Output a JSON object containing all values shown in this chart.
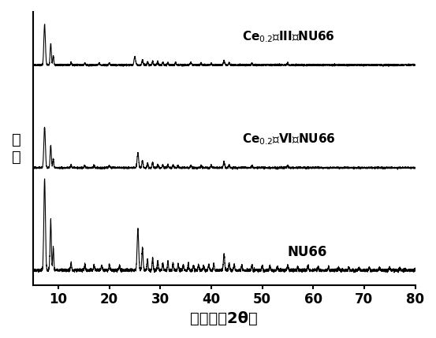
{
  "xlim": [
    5,
    80
  ],
  "xticks": [
    10,
    20,
    30,
    40,
    50,
    60,
    70,
    80
  ],
  "xlabel": "衍射角（2θ）",
  "ylabel": "强\n度",
  "background_color": "#ffffff",
  "line_color": "#000000",
  "labels": [
    "Ce₀₂（Ⅲ）NU66",
    "Ce₀₂（Ⅵ）NU66",
    "NU66"
  ],
  "offsets": [
    2.2,
    1.1,
    0.0
  ],
  "title": ""
}
